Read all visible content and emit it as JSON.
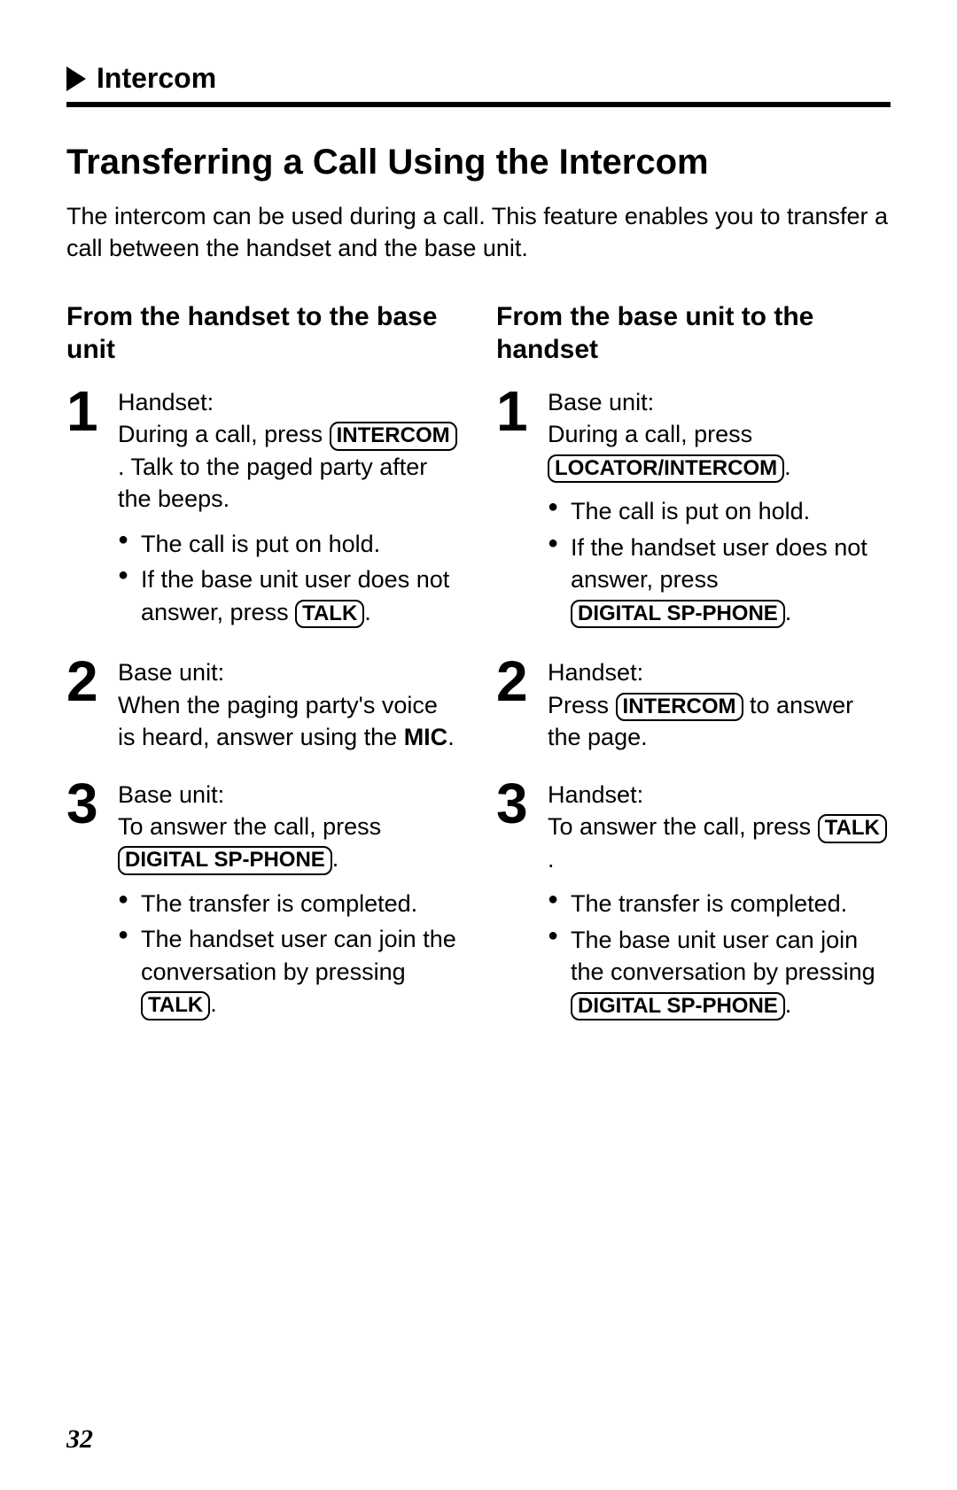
{
  "header": {
    "section_label": "Intercom"
  },
  "title": "Transferring a Call Using the Intercom",
  "intro": "The intercom can be used during a call. This feature enables you to transfer a call between the handset and the base unit.",
  "left": {
    "heading": "From the handset to the base unit",
    "steps": [
      {
        "num": "1",
        "label": "Handset:",
        "pre": "During a call, press ",
        "key": "INTERCOM",
        "post": ". Talk to the paged party after the beeps.",
        "bullets": [
          {
            "pre": "The call is put on hold."
          },
          {
            "pre": "If the base unit user does not answer, press ",
            "key": "TALK",
            "post": "."
          }
        ]
      },
      {
        "num": "2",
        "label": "Base unit:",
        "pre": "When the paging party's voice is heard, answer using the ",
        "bold": "MIC",
        "post": "."
      },
      {
        "num": "3",
        "label": "Base unit:",
        "pre": "To answer the call, press ",
        "key": "DIGITAL SP-PHONE",
        "post": ".",
        "bullets": [
          {
            "pre": "The transfer is completed."
          },
          {
            "pre": "The handset user can join the conversation by pressing ",
            "key": "TALK",
            "post": "."
          }
        ]
      }
    ]
  },
  "right": {
    "heading": "From the base unit to the handset",
    "steps": [
      {
        "num": "1",
        "label": "Base unit:",
        "pre": "During a call, press ",
        "key": "LOCATOR/INTERCOM",
        "post": ".",
        "bullets": [
          {
            "pre": "The call is put on hold."
          },
          {
            "pre": "If the handset user does not answer, press ",
            "key": "DIGITAL SP-PHONE",
            "post": "."
          }
        ]
      },
      {
        "num": "2",
        "label": "Handset:",
        "pre": "Press ",
        "key": "INTERCOM",
        "post": " to answer the page."
      },
      {
        "num": "3",
        "label": "Handset:",
        "pre": "To answer the call, press ",
        "key": "TALK",
        "post": ".",
        "bullets": [
          {
            "pre": "The transfer is completed."
          },
          {
            "pre": "The base unit user can join the conversation by pressing ",
            "key": "DIGITAL SP-PHONE",
            "post": "."
          }
        ]
      }
    ]
  },
  "page_number": "32"
}
